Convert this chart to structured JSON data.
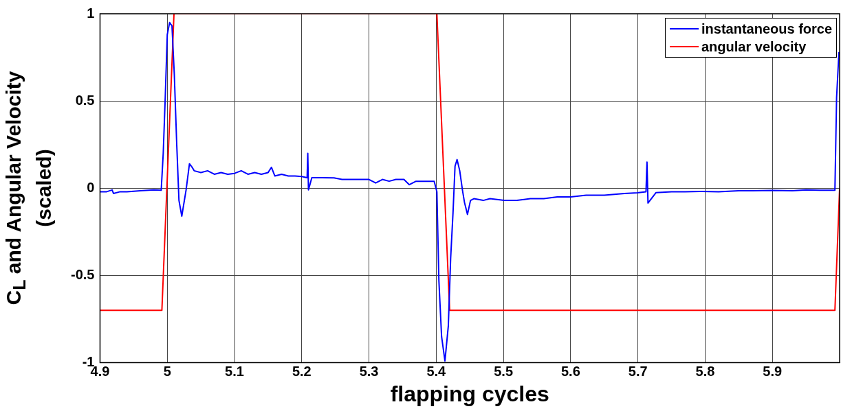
{
  "chart_data": {
    "type": "line",
    "xlabel": "flapping cycles",
    "ylabel": "C$_{L}$ and Angular Velocity (scaled)",
    "xlim": [
      4.9,
      6.0
    ],
    "xticks": [
      4.9,
      5,
      5.1,
      5.2,
      5.3,
      5.4,
      5.5,
      5.6,
      5.7,
      5.8,
      5.9
    ],
    "ylim": [
      -1,
      1
    ],
    "yticks": [
      -1,
      -0.5,
      0,
      0.5,
      1
    ],
    "grid": true,
    "legend": "top right",
    "marker": "none",
    "line_style": "solid",
    "series": [
      {
        "name": "instantaneous force",
        "color": "#0000ff",
        "x": [
          4.9,
          4.91,
          4.918,
          4.92,
          4.93,
          4.94,
          4.96,
          4.98,
          4.991,
          4.994,
          4.997,
          5.0,
          5.0035,
          5.007,
          5.0105,
          5.014,
          5.0174,
          5.0216,
          5.028,
          5.033,
          5.037,
          5.04,
          5.05,
          5.06,
          5.07,
          5.08,
          5.09,
          5.1,
          5.11,
          5.12,
          5.13,
          5.14,
          5.15,
          5.155,
          5.16,
          5.17,
          5.18,
          5.19,
          5.2,
          5.208,
          5.209,
          5.21,
          5.215,
          5.23,
          5.248,
          5.26,
          5.28,
          5.3,
          5.31,
          5.32,
          5.33,
          5.34,
          5.352,
          5.36,
          5.37,
          5.38,
          5.397,
          5.401,
          5.404,
          5.408,
          5.413,
          5.418,
          5.4215,
          5.425,
          5.428,
          5.431,
          5.435,
          5.439,
          5.442,
          5.4465,
          5.451,
          5.456,
          5.47,
          5.48,
          5.501,
          5.52,
          5.54,
          5.56,
          5.58,
          5.6,
          5.623,
          5.65,
          5.68,
          5.699,
          5.712,
          5.7135,
          5.715,
          5.727,
          5.75,
          5.77,
          5.796,
          5.82,
          5.85,
          5.87,
          5.9,
          5.93,
          5.95,
          5.97,
          5.993,
          5.9955,
          5.999
        ],
        "values": [
          -0.02,
          -0.02,
          -0.01,
          -0.03,
          -0.02,
          -0.02,
          -0.015,
          -0.01,
          -0.012,
          0.2,
          0.52,
          0.88,
          0.95,
          0.93,
          0.65,
          0.26,
          -0.07,
          -0.16,
          -0.01,
          0.14,
          0.12,
          0.1,
          0.09,
          0.1,
          0.08,
          0.09,
          0.08,
          0.085,
          0.1,
          0.08,
          0.09,
          0.08,
          0.09,
          0.12,
          0.07,
          0.08,
          0.07,
          0.07,
          0.067,
          0.06,
          0.2,
          -0.01,
          0.06,
          0.06,
          0.059,
          0.05,
          0.05,
          0.05,
          0.03,
          0.05,
          0.04,
          0.05,
          0.05,
          0.02,
          0.04,
          0.04,
          0.04,
          -0.02,
          -0.53,
          -0.85,
          -0.99,
          -0.79,
          -0.4,
          -0.14,
          0.126,
          0.164,
          0.1,
          -0.01,
          -0.08,
          -0.15,
          -0.07,
          -0.06,
          -0.07,
          -0.06,
          -0.07,
          -0.07,
          -0.06,
          -0.06,
          -0.05,
          -0.05,
          -0.04,
          -0.04,
          -0.03,
          -0.026,
          -0.02,
          0.15,
          -0.085,
          -0.025,
          -0.02,
          -0.02,
          -0.018,
          -0.02,
          -0.015,
          -0.015,
          -0.013,
          -0.015,
          -0.01,
          -0.012,
          -0.012,
          0.52,
          0.78
        ]
      },
      {
        "name": "angular velocity",
        "color": "#ff0000",
        "x": [
          4.9,
          4.992,
          5.01,
          5.401,
          5.42,
          5.993,
          6.0
        ],
        "values": [
          -0.7,
          -0.7,
          1,
          1,
          -0.7,
          -0.7,
          0
        ]
      }
    ]
  }
}
